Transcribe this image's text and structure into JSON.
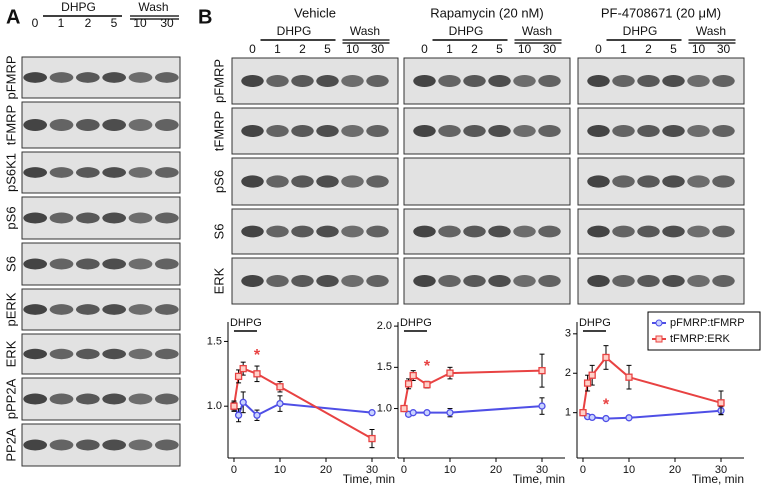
{
  "panel_a": {
    "label": "A",
    "lanes": [
      "0",
      "1",
      "2",
      "5",
      "10",
      "30"
    ],
    "dhpg": "DHPG",
    "wash": "Wash",
    "rows": [
      "pFMRP",
      "tFMRP",
      "pS6K1",
      "pS6",
      "S6",
      "pERK",
      "ERK",
      "pPP2A",
      "PP2A"
    ]
  },
  "panel_b": {
    "label": "B",
    "conditions": [
      "Vehicle",
      "Rapamycin (20 nM)",
      "PF-4708671 (20 μM)"
    ],
    "lanes": [
      "0",
      "1",
      "2",
      "5",
      "10",
      "30"
    ],
    "dhpg": "DHPG",
    "wash": "Wash",
    "rows": [
      "pFMRP",
      "tFMRP",
      "pS6",
      "S6",
      "ERK"
    ]
  },
  "chart_data": [
    {
      "type": "line",
      "x": [
        0,
        1,
        2,
        5,
        10,
        30
      ],
      "xlim": [
        -1.3,
        35
      ],
      "xticks": [
        0,
        10,
        20,
        30
      ],
      "ylim": [
        0.6,
        1.65
      ],
      "yticks": [
        {
          "value": 1.0,
          "label": "1.0"
        },
        {
          "value": 1.5,
          "label": "1.5"
        }
      ],
      "xlabel": "Time, min",
      "annotations": [
        "DHPG",
        "*"
      ],
      "legend": "none",
      "series": [
        {
          "name": "pFMRP:tFMRP",
          "color": "#4f4fe6",
          "values": [
            1.0,
            0.93,
            1.03,
            0.93,
            1.02,
            0.95
          ],
          "errors": [
            0.03,
            0.05,
            0.08,
            0.04,
            0.06,
            0.01
          ]
        },
        {
          "name": "tFMRP:ERK",
          "color": "#e84242",
          "values": [
            1.0,
            1.23,
            1.29,
            1.25,
            1.15,
            0.75
          ],
          "errors": [
            0.04,
            0.05,
            0.05,
            0.06,
            0.04,
            0.07
          ]
        }
      ]
    },
    {
      "type": "line",
      "x": [
        0,
        1,
        2,
        5,
        10,
        30
      ],
      "xlim": [
        -1.3,
        35
      ],
      "xticks": [
        0,
        10,
        20,
        30
      ],
      "ylim": [
        0.4,
        2.05
      ],
      "yticks": [
        {
          "value": 1.0,
          "label": "1.0"
        },
        {
          "value": 1.5,
          "label": "1.5"
        },
        {
          "value": 2.0,
          "label": "2.0"
        }
      ],
      "xlabel": "Time, min",
      "annotations": [
        "DHPG",
        "*"
      ],
      "legend": "none",
      "series": [
        {
          "name": "pFMRP:tFMRP",
          "color": "#4f4fe6",
          "values": [
            1.0,
            0.93,
            0.95,
            0.95,
            0.95,
            1.03
          ],
          "errors": [
            0.02,
            0.02,
            0.02,
            0.02,
            0.05,
            0.1
          ]
        },
        {
          "name": "tFMRP:ERK",
          "color": "#e84242",
          "values": [
            1.0,
            1.3,
            1.4,
            1.29,
            1.43,
            1.46
          ],
          "errors": [
            0.03,
            0.06,
            0.06,
            0.04,
            0.07,
            0.2
          ]
        }
      ]
    },
    {
      "type": "line",
      "x": [
        0,
        1,
        2,
        5,
        10,
        30
      ],
      "xlim": [
        -1.3,
        35
      ],
      "xticks": [
        0,
        10,
        20,
        30
      ],
      "ylim": [
        -0.15,
        3.3
      ],
      "yticks": [
        1,
        2,
        3
      ],
      "xlabel": "Time, min",
      "annotations": [
        "DHPG",
        "*"
      ],
      "legend": "upper right",
      "series": [
        {
          "name": "pFMRP:tFMRP",
          "color": "#4f4fe6",
          "values": [
            1.0,
            0.9,
            0.88,
            0.85,
            0.87,
            1.05
          ],
          "errors": [
            0.03,
            0.05,
            0.03,
            0.03,
            0.05,
            0.1
          ]
        },
        {
          "name": "tFMRP:ERK",
          "color": "#e84242",
          "values": [
            1.0,
            1.75,
            1.95,
            2.4,
            1.9,
            1.25
          ],
          "errors": [
            0.05,
            0.2,
            0.25,
            0.3,
            0.3,
            0.3
          ]
        }
      ]
    }
  ]
}
